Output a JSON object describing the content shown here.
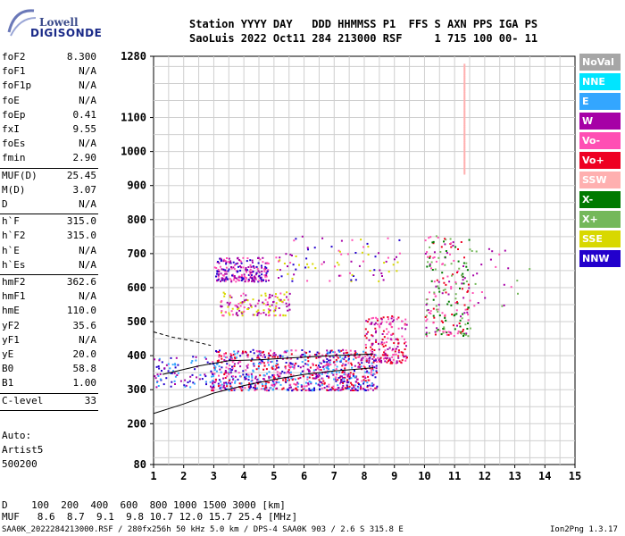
{
  "logo": {
    "brand": "Lowell",
    "product": "DIGISONDE"
  },
  "header": {
    "line1": "Station YYYY DAY   DDD HHMMSS P1  FFS S AXN PPS IGA PS",
    "line2": "SaoLuis 2022 Oct11 284 213000 RSF     1 715 100 00- 11"
  },
  "params_group1": [
    {
      "k": "foF2",
      "v": "8.300"
    },
    {
      "k": "foF1",
      "v": "N/A"
    },
    {
      "k": "foF1p",
      "v": "N/A"
    },
    {
      "k": "foE",
      "v": "N/A"
    },
    {
      "k": "foEp",
      "v": "0.41"
    },
    {
      "k": "fxI",
      "v": "9.55"
    },
    {
      "k": "foEs",
      "v": "N/A"
    },
    {
      "k": "fmin",
      "v": "2.90"
    }
  ],
  "params_group2": [
    {
      "k": "MUF(D)",
      "v": "25.45"
    },
    {
      "k": "M(D)",
      "v": "3.07"
    },
    {
      "k": "D",
      "v": "N/A"
    }
  ],
  "params_group3": [
    {
      "k": "h`F",
      "v": "315.0"
    },
    {
      "k": "h`F2",
      "v": "315.0"
    },
    {
      "k": "h`E",
      "v": "N/A"
    },
    {
      "k": "h`Es",
      "v": "N/A"
    }
  ],
  "params_group4": [
    {
      "k": "hmF2",
      "v": "362.6"
    },
    {
      "k": "hmF1",
      "v": "N/A"
    },
    {
      "k": "hmE",
      "v": "110.0"
    },
    {
      "k": "yF2",
      "v": "35.6"
    },
    {
      "k": "yF1",
      "v": "N/A"
    },
    {
      "k": "yE",
      "v": "20.0"
    },
    {
      "k": "B0",
      "v": "58.8"
    },
    {
      "k": "B1",
      "v": "1.00"
    }
  ],
  "params_group5": [
    {
      "k": "C-level",
      "v": "33"
    }
  ],
  "autoscale": {
    "line1": "Auto:",
    "line2": "Artist5",
    "line3": "500200"
  },
  "footer": {
    "d_row": "D    100  200  400  600  800 1000 1500 3000 [km]",
    "muf_row": "MUF   8.6  8.7  9.1  9.8 10.7 12.0 15.7 25.4 [MHz]",
    "file_info": "SAA0K_2022284213000.RSF / 280fx256h 50 kHz 5.0 km / DPS-4 SAA0K 903 / 2.6 S 315.8 E",
    "version": "Ion2Png 1.3.17"
  },
  "legend": [
    {
      "label": "NoVal",
      "color": "#a6a6a6"
    },
    {
      "label": "NNE",
      "color": "#00e5ff"
    },
    {
      "label": "E",
      "color": "#33a6ff"
    },
    {
      "label": "W",
      "color": "#a600a6"
    },
    {
      "label": "Vo-",
      "color": "#ff4fb4"
    },
    {
      "label": "Vo+",
      "color": "#ee0022"
    },
    {
      "label": "SSW",
      "color": "#ffb0b0"
    },
    {
      "label": "X-",
      "color": "#007a00"
    },
    {
      "label": "X+",
      "color": "#74b85a"
    },
    {
      "label": "SSE",
      "color": "#d8d800"
    },
    {
      "label": "NNW",
      "color": "#2200cc"
    }
  ],
  "chart_data": {
    "type": "scatter",
    "xlabel": "",
    "ylabel": "",
    "x_ticks": [
      1,
      2,
      3,
      4,
      5,
      6,
      7,
      8,
      9,
      10,
      11,
      12,
      13,
      14,
      15
    ],
    "y_ticks": [
      80,
      200,
      300,
      400,
      500,
      600,
      700,
      800,
      900,
      1000,
      1100,
      1280
    ],
    "xlim": [
      1,
      15
    ],
    "ylim": [
      80,
      1280
    ],
    "grid": true,
    "clusters": [
      {
        "fmin": 2.9,
        "fmax": 8.4,
        "hmin": 300,
        "hmax": 420,
        "n": 900,
        "colors": [
          "#ee0022",
          "#ff4fb4",
          "#a600a6",
          "#2200cc",
          "#33a6ff"
        ]
      },
      {
        "fmin": 8.0,
        "fmax": 9.4,
        "hmin": 380,
        "hmax": 520,
        "n": 180,
        "colors": [
          "#ee0022",
          "#ff4fb4",
          "#a600a6"
        ]
      },
      {
        "fmin": 3.0,
        "fmax": 4.8,
        "hmin": 620,
        "hmax": 690,
        "n": 220,
        "colors": [
          "#a600a6",
          "#2200cc",
          "#ff4fb4"
        ]
      },
      {
        "fmin": 3.2,
        "fmax": 5.5,
        "hmin": 520,
        "hmax": 590,
        "n": 140,
        "colors": [
          "#d8d800",
          "#ff4fb4",
          "#a600a6"
        ]
      },
      {
        "fmin": 10.0,
        "fmax": 11.5,
        "hmin": 460,
        "hmax": 760,
        "n": 220,
        "colors": [
          "#a600a6",
          "#ee0022",
          "#ff4fb4",
          "#007a00",
          "#74b85a"
        ]
      },
      {
        "fmin": 5.0,
        "fmax": 9.2,
        "hmin": 620,
        "hmax": 760,
        "n": 90,
        "colors": [
          "#a600a6",
          "#ff4fb4",
          "#2200cc",
          "#d8d800"
        ]
      },
      {
        "fmin": 1.0,
        "fmax": 3.0,
        "hmin": 310,
        "hmax": 400,
        "n": 90,
        "colors": [
          "#2200cc",
          "#a600a6",
          "#33a6ff"
        ]
      },
      {
        "fmin": 11.5,
        "fmax": 13.5,
        "hmin": 540,
        "hmax": 720,
        "n": 25,
        "colors": [
          "#a600a6",
          "#74b85a",
          "#ff4fb4"
        ]
      }
    ],
    "vertical_trace": {
      "f": 11.3,
      "hmin": 940,
      "hmax": 1260,
      "color": "#ffb0b0"
    },
    "profile_lower": [
      [
        1.0,
        230
      ],
      [
        2.0,
        258
      ],
      [
        3.0,
        290
      ],
      [
        4.0,
        312
      ],
      [
        5.0,
        330
      ],
      [
        6.0,
        345
      ],
      [
        7.0,
        355
      ],
      [
        8.0,
        362
      ],
      [
        8.3,
        365
      ]
    ],
    "profile_upper": [
      [
        1.3,
        345
      ],
      [
        2.5,
        370
      ],
      [
        3.5,
        385
      ],
      [
        4.5,
        388
      ],
      [
        5.5,
        393
      ],
      [
        6.5,
        398
      ],
      [
        7.5,
        402
      ],
      [
        8.3,
        405
      ]
    ],
    "profile_dashed": [
      [
        1.0,
        470
      ],
      [
        1.6,
        455
      ],
      [
        2.2,
        445
      ],
      [
        2.9,
        430
      ]
    ]
  }
}
